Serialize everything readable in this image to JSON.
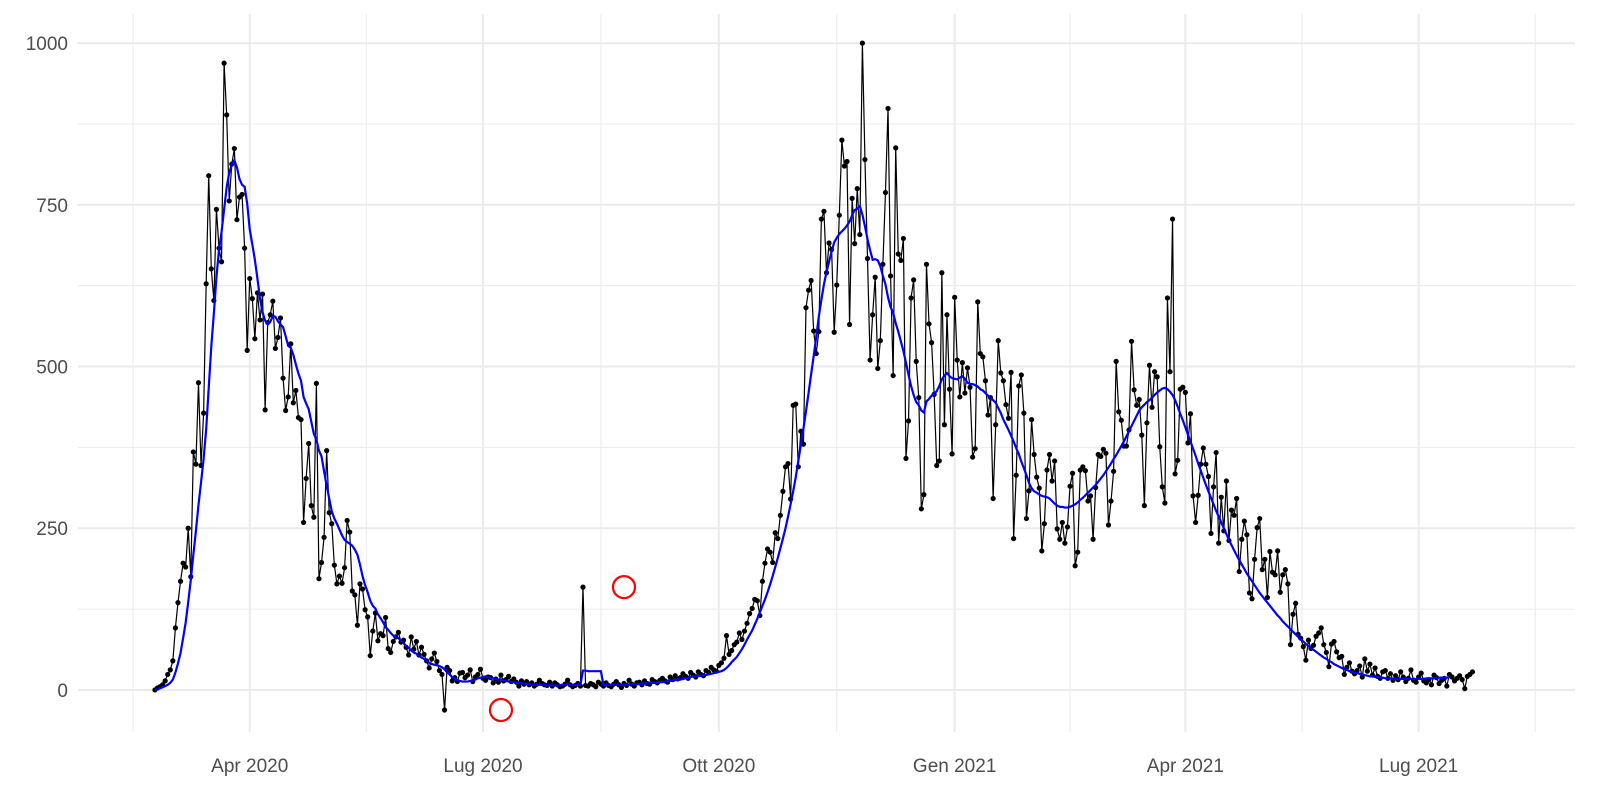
{
  "chart_data": {
    "type": "line",
    "title": "",
    "xlabel": "",
    "ylabel": "",
    "x_start": "2020-02-24",
    "x_end": "2021-08-01",
    "xlim": [
      "2020-01-25",
      "2021-08-31"
    ],
    "ylim": [
      -65,
      1045
    ],
    "y_ticks": [
      0,
      250,
      500,
      750,
      1000
    ],
    "y_tick_labels": [
      "0",
      "250",
      "500",
      "750",
      "1000"
    ],
    "x_ticks": [
      "2020-04-01",
      "2020-07-01",
      "2020-10-01",
      "2021-01-01",
      "2021-04-01",
      "2021-07-01"
    ],
    "x_tick_labels": [
      "Apr 2020",
      "Lug 2020",
      "Ott 2020",
      "Gen 2021",
      "Apr 2021",
      "Lug 2021"
    ],
    "grid": true,
    "legend": "none",
    "colors": {
      "daily": "#000000",
      "moving_average": "#0000ff",
      "highlight": "#ff0000",
      "grid": "#ebebeb"
    },
    "series": [
      {
        "values": [
          0,
          3,
          5,
          8,
          14,
          24,
          31,
          45,
          96,
          135,
          168,
          196,
          190,
          250,
          175,
          368,
          349,
          475,
          347,
          428,
          628,
          795,
          651,
          602,
          743,
          683,
          662,
          969,
          889,
          756,
          813,
          837,
          727,
          762,
          766,
          683,
          525,
          636,
          605,
          543,
          614,
          572,
          612,
          433,
          568,
          580,
          601,
          528,
          545,
          575,
          482,
          432,
          453,
          535,
          444,
          463,
          421,
          418,
          259,
          327,
          381,
          285,
          267,
          474,
          172,
          197,
          236,
          370,
          274,
          257,
          193,
          164,
          176,
          165,
          189,
          262,
          244,
          153,
          147,
          100,
          164,
          156,
          124,
          113,
          53,
          91,
          119,
          76,
          87,
          84,
          112,
          64,
          58,
          75,
          82,
          89,
          74,
          77,
          66,
          54,
          82,
          63,
          75,
          54,
          66,
          55,
          45,
          34,
          48,
          57,
          44,
          30,
          24,
          -31,
          35,
          30,
          14,
          19,
          13,
          26,
          27,
          19,
          23,
          31,
          13,
          20,
          24,
          32,
          18,
          15,
          20,
          19,
          11,
          17,
          12,
          23,
          14,
          16,
          21,
          13,
          17,
          12,
          6,
          14,
          9,
          13,
          8,
          11,
          6,
          9,
          15,
          10,
          8,
          7,
          12,
          6,
          11,
          8,
          5,
          6,
          9,
          15,
          8,
          5,
          7,
          10,
          6,
          159,
          7,
          6,
          10,
          8,
          5,
          12,
          9,
          6,
          11,
          7,
          5,
          9,
          13,
          8,
          4,
          10,
          7,
          15,
          9,
          6,
          11,
          12,
          8,
          14,
          10,
          9,
          16,
          13,
          11,
          15,
          18,
          14,
          12,
          20,
          16,
          22,
          17,
          19,
          25,
          21,
          18,
          27,
          23,
          20,
          28,
          24,
          22,
          30,
          27,
          35,
          31,
          29,
          38,
          42,
          49,
          84,
          55,
          61,
          70,
          74,
          88,
          78,
          91,
          103,
          118,
          126,
          140,
          138,
          115,
          168,
          196,
          218,
          213,
          197,
          243,
          234,
          270,
          307,
          345,
          350,
          295,
          440,
          442,
          345,
          400,
          380,
          591,
          618,
          633,
          555,
          520,
          554,
          728,
          740,
          645,
          691,
          681,
          553,
          626,
          734,
          850,
          810,
          817,
          565,
          760,
          690,
          775,
          704,
          1000,
          820,
          667,
          510,
          580,
          638,
          497,
          540,
          658,
          769,
          899,
          640,
          486,
          838,
          674,
          664,
          698,
          358,
          416,
          606,
          634,
          508,
          452,
          280,
          302,
          658,
          566,
          537,
          457,
          347,
          354,
          645,
          410,
          580,
          465,
          365,
          607,
          510,
          453,
          506,
          459,
          498,
          468,
          360,
          373,
          600,
          520,
          515,
          478,
          425,
          452,
          296,
          410,
          540,
          490,
          478,
          441,
          420,
          491,
          234,
          332,
          470,
          487,
          428,
          265,
          308,
          418,
          364,
          329,
          312,
          215,
          257,
          340,
          364,
          323,
          354,
          249,
          233,
          259,
          227,
          252,
          315,
          335,
          192,
          213,
          340,
          345,
          339,
          292,
          300,
          233,
          313,
          364,
          361,
          372,
          366,
          255,
          292,
          338,
          508,
          430,
          417,
          377,
          377,
          402,
          539,
          464,
          440,
          449,
          394,
          285,
          413,
          502,
          437,
          492,
          484,
          376,
          314,
          289,
          606,
          492,
          728,
          334,
          355,
          465,
          468,
          460,
          382,
          427,
          300,
          259,
          301,
          349,
          374,
          349,
          330,
          242,
          314,
          367,
          227,
          298,
          246,
          323,
          231,
          278,
          270,
          296,
          183,
          233,
          261,
          240,
          150,
          141,
          202,
          251,
          265,
          186,
          202,
          143,
          214,
          182,
          178,
          215,
          151,
          178,
          186,
          164,
          70,
          117,
          134,
          86,
          80,
          67,
          46,
          77,
          64,
          69,
          83,
          88,
          96,
          70,
          58,
          36,
          71,
          75,
          59,
          50,
          52,
          24,
          35,
          42,
          29,
          25,
          30,
          37,
          20,
          48,
          29,
          40,
          23,
          34,
          21,
          18,
          28,
          30,
          18,
          25,
          15,
          22,
          16,
          28,
          20,
          13,
          18,
          31,
          15,
          12,
          20,
          26,
          14,
          11,
          16,
          8,
          23,
          19,
          10,
          15,
          18,
          6,
          24,
          20,
          14,
          18,
          22,
          16,
          2,
          21,
          24,
          28
        ]
      },
      {
        "values": [
          0,
          1,
          3,
          4,
          6,
          8,
          11,
          16,
          27,
          41,
          57,
          80,
          104,
          136,
          170,
          209,
          246,
          286,
          321,
          357,
          403,
          467,
          531,
          582,
          638,
          680,
          708,
          743,
          777,
          800,
          812,
          819,
          808,
          790,
          781,
          778,
          752,
          712,
          689,
          665,
          636,
          605,
          584,
          571,
          565,
          569,
          578,
          577,
          570,
          565,
          561,
          547,
          532,
          529,
          518,
          503,
          489,
          478,
          453,
          443,
          434,
          415,
          396,
          387,
          370,
          361,
          338,
          316,
          296,
          276,
          265,
          257,
          248,
          239,
          232,
          229,
          226,
          223,
          217,
          209,
          194,
          176,
          162,
          151,
          138,
          130,
          126,
          117,
          111,
          105,
          97,
          93,
          88,
          84,
          82,
          80,
          76,
          72,
          68,
          65,
          61,
          58,
          56,
          53,
          50,
          48,
          45,
          42,
          40,
          39,
          38,
          37,
          35,
          32,
          27,
          24,
          20,
          17,
          15,
          14,
          13,
          13,
          13,
          14,
          15,
          16,
          18,
          19,
          20,
          21,
          20,
          18,
          18,
          17,
          16,
          16,
          15,
          14,
          13,
          12,
          12,
          11,
          11,
          10,
          10,
          9,
          9,
          8,
          8,
          8,
          8,
          8,
          8,
          7,
          7,
          7,
          7,
          7,
          7,
          8,
          8,
          9,
          8,
          8,
          8,
          8,
          8,
          30,
          30,
          29,
          29,
          29,
          29,
          29,
          29,
          7,
          8,
          8,
          8,
          8,
          8,
          8,
          8,
          8,
          8,
          8,
          9,
          9,
          9,
          9,
          10,
          10,
          10,
          10,
          11,
          11,
          11,
          12,
          12,
          13,
          14,
          14,
          15,
          15,
          16,
          16,
          17,
          18,
          19,
          20,
          21,
          21,
          22,
          22,
          23,
          23,
          24,
          25,
          26,
          27,
          28,
          29,
          31,
          34,
          38,
          43,
          47,
          51,
          57,
          63,
          70,
          78,
          85,
          92,
          101,
          110,
          120,
          130,
          140,
          151,
          163,
          176,
          190,
          204,
          219,
          234,
          250,
          268,
          287,
          307,
          329,
          354,
          379,
          404,
          431,
          459,
          488,
          516,
          546,
          577,
          603,
          627,
          646,
          662,
          678,
          692,
          699,
          705,
          709,
          713,
          718,
          724,
          734,
          742,
          744,
          748,
          735,
          717,
          697,
          680,
          665,
          666,
          664,
          655,
          640,
          627,
          607,
          592,
          583,
          567,
          554,
          539,
          524,
          506,
          487,
          470,
          456,
          445,
          440,
          432,
          429,
          446,
          450,
          455,
          458,
          462,
          470,
          480,
          486,
          490,
          485,
          482,
          481,
          480,
          483,
          485,
          481,
          475,
          473,
          473,
          471,
          469,
          465,
          463,
          459,
          455,
          450,
          448,
          444,
          436,
          428,
          418,
          410,
          402,
          393,
          384,
          374,
          365,
          353,
          343,
          332,
          320,
          312,
          307,
          305,
          302,
          300,
          299,
          298,
          296,
          292,
          288,
          285,
          283,
          283,
          282,
          282,
          283,
          285,
          287,
          290,
          294,
          297,
          301,
          305,
          309,
          313,
          317,
          322,
          327,
          332,
          338,
          344,
          350,
          357,
          363,
          370,
          377,
          384,
          392,
          400,
          408,
          416,
          424,
          432,
          437,
          441,
          445,
          448,
          452,
          456,
          460,
          463,
          466,
          467,
          465,
          461,
          456,
          448,
          438,
          427,
          417,
          406,
          395,
          384,
          373,
          362,
          350,
          339,
          328,
          317,
          307,
          297,
          287,
          277,
          268,
          259,
          250,
          241,
          232,
          224,
          216,
          208,
          201,
          194,
          187,
          180,
          174,
          168,
          162,
          156,
          150,
          145,
          140,
          135,
          130,
          125,
          120,
          115,
          111,
          106,
          102,
          98,
          94,
          90,
          86,
          82,
          78,
          75,
          71,
          68,
          65,
          62,
          59,
          56,
          53,
          50,
          48,
          45,
          43,
          40,
          38,
          36,
          34,
          32,
          31,
          29,
          28,
          27,
          26,
          25,
          24,
          23,
          22,
          21,
          21,
          20,
          20,
          19,
          19,
          18,
          18,
          18,
          17,
          17,
          17,
          17,
          17,
          17,
          17,
          17,
          17,
          17,
          17,
          17,
          17,
          18,
          18,
          18,
          18,
          18,
          19,
          19,
          19,
          19,
          20
        ]
      }
    ],
    "highlighted_points": [
      {
        "date": "2020-07-08",
        "value": -31
      },
      {
        "date": "2020-08-25",
        "value": 159
      }
    ]
  }
}
